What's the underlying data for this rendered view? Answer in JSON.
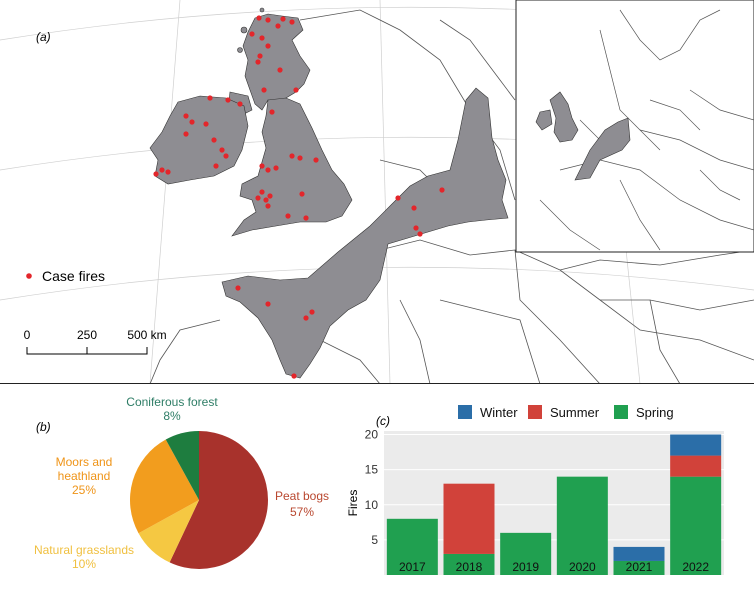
{
  "map": {
    "panel_label": "(a)",
    "legend_label": "Case fires",
    "scalebar": {
      "ticks": [
        "0",
        "250",
        "500 km"
      ]
    },
    "colors": {
      "land": "#8e8d92",
      "point": "#e3262b",
      "border": "#555555"
    }
  },
  "chart_data": [
    {
      "type": "pie",
      "panel_label": "(b)",
      "slices": [
        {
          "label": "Peat bogs",
          "pct_label": "57%",
          "value": 57,
          "color": "#a8322c"
        },
        {
          "label": "Natural grasslands",
          "pct_label": "10%",
          "value": 10,
          "color": "#f5c842"
        },
        {
          "label": "Moors and heathland",
          "pct_label": "25%",
          "value": 25,
          "color": "#f29d1e"
        },
        {
          "label": "Coniferous forest",
          "pct_label": "8%",
          "value": 8,
          "color": "#1e7d3f"
        }
      ],
      "label_colors": {
        "Peat bogs": "#b9472f",
        "Natural grasslands": "#f0c040",
        "Moors and heathland": "#ef9418",
        "Coniferous forest": "#2e7d66"
      }
    },
    {
      "type": "bar",
      "stacked": true,
      "panel_label": "(c)",
      "ylabel": "Fires",
      "categories": [
        "2017",
        "2018",
        "2019",
        "2020",
        "2021",
        "2022"
      ],
      "yticks": [
        "5",
        "10",
        "15",
        "20"
      ],
      "ylim": [
        0,
        20.5
      ],
      "series": [
        {
          "name": "Spring",
          "color": "#20a050",
          "values": [
            8,
            3,
            6,
            14,
            2,
            14
          ]
        },
        {
          "name": "Summer",
          "color": "#d1423a",
          "values": [
            0,
            10,
            0,
            0,
            0,
            3
          ]
        },
        {
          "name": "Winter",
          "color": "#2b6ea8",
          "values": [
            0,
            0,
            0,
            0,
            2,
            3
          ]
        }
      ],
      "legend_order": [
        "Winter",
        "Summer",
        "Spring"
      ],
      "legend_position": "top",
      "grid": true
    }
  ]
}
